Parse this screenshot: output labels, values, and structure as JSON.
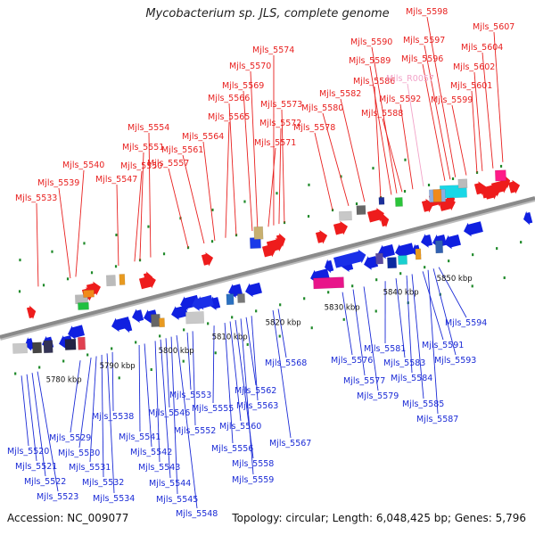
{
  "title": "Mycobacterium sp. JLS, complete genome",
  "footer": {
    "accession": "Accession: NC_009077",
    "summary": "Topology: circular; Length: 6,048,425 bp; Genes: 5,796"
  },
  "colors": {
    "forward_label": "#e8201f",
    "reverse_label": "#1a2ad6",
    "rna_label": "#f2a3c8",
    "backbone": "#8a8a8a",
    "tick": "#1f8a2a"
  },
  "kbp_marks": [
    "5780 kbp",
    "5790 kbp",
    "5800 kbp",
    "5810 kbp",
    "5820 kbp",
    "5830 kbp",
    "5840 kbp",
    "5850 kbp"
  ],
  "top_labels": [
    {
      "text": "Mjls_5598",
      "type": "cds"
    },
    {
      "text": "Mjls_5607",
      "type": "cds"
    },
    {
      "text": "Mjls_5590",
      "type": "cds"
    },
    {
      "text": "Mjls_5597",
      "type": "cds"
    },
    {
      "text": "Mjls_5604",
      "type": "cds"
    },
    {
      "text": "Mjls_5574",
      "type": "cds"
    },
    {
      "text": "Mjls_5589",
      "type": "cds"
    },
    {
      "text": "Mjls_5596",
      "type": "cds"
    },
    {
      "text": "Mjls_5570",
      "type": "cds"
    },
    {
      "text": "Mjls_5602",
      "type": "cds"
    },
    {
      "text": "Mjls_5586",
      "type": "cds"
    },
    {
      "text": "Mjls_R0057",
      "type": "rna"
    },
    {
      "text": "Mjls_5569",
      "type": "cds"
    },
    {
      "text": "Mjls_5601",
      "type": "cds"
    },
    {
      "text": "Mjls_5582",
      "type": "cds"
    },
    {
      "text": "Mjls_5566",
      "type": "cds"
    },
    {
      "text": "Mjls_5573",
      "type": "cds"
    },
    {
      "text": "Mjls_5592",
      "type": "cds"
    },
    {
      "text": "Mjls_5599",
      "type": "cds"
    },
    {
      "text": "Mjls_5580",
      "type": "cds"
    },
    {
      "text": "Mjls_5588",
      "type": "cds"
    },
    {
      "text": "Mjls_5565",
      "type": "cds"
    },
    {
      "text": "Mjls_5572",
      "type": "cds"
    },
    {
      "text": "Mjls_5554",
      "type": "cds"
    },
    {
      "text": "Mjls_5578",
      "type": "cds"
    },
    {
      "text": "Mjls_5564",
      "type": "cds"
    },
    {
      "text": "Mjls_5571",
      "type": "cds"
    },
    {
      "text": "Mjls_5551",
      "type": "cds"
    },
    {
      "text": "Mjls_5561",
      "type": "cds"
    },
    {
      "text": "Mjls_5540",
      "type": "cds"
    },
    {
      "text": "Mjls_5550",
      "type": "cds"
    },
    {
      "text": "Mjls_5557",
      "type": "cds"
    },
    {
      "text": "Mjls_5539",
      "type": "cds"
    },
    {
      "text": "Mjls_5547",
      "type": "cds"
    },
    {
      "text": "Mjls_5533",
      "type": "cds"
    }
  ],
  "bottom_labels": [
    {
      "text": "Mjls_5594"
    },
    {
      "text": "Mjls_5581"
    },
    {
      "text": "Mjls_5591"
    },
    {
      "text": "Mjls_5568"
    },
    {
      "text": "Mjls_5576"
    },
    {
      "text": "Mjls_5583"
    },
    {
      "text": "Mjls_5593"
    },
    {
      "text": "Mjls_5577"
    },
    {
      "text": "Mjls_5584"
    },
    {
      "text": "Mjls_5562"
    },
    {
      "text": "Mjls_5579"
    },
    {
      "text": "Mjls_5553"
    },
    {
      "text": "Mjls_5563"
    },
    {
      "text": "Mjls_5585"
    },
    {
      "text": "Mjls_5538"
    },
    {
      "text": "Mjls_5546"
    },
    {
      "text": "Mjls_5555"
    },
    {
      "text": "Mjls_5587"
    },
    {
      "text": "Mjls_5560"
    },
    {
      "text": "Mjls_5552"
    },
    {
      "text": "Mjls_5529"
    },
    {
      "text": "Mjls_5541"
    },
    {
      "text": "Mjls_5567"
    },
    {
      "text": "Mjls_5520"
    },
    {
      "text": "Mjls_5530"
    },
    {
      "text": "Mjls_5542"
    },
    {
      "text": "Mjls_5556"
    },
    {
      "text": "Mjls_5521"
    },
    {
      "text": "Mjls_5531"
    },
    {
      "text": "Mjls_5543"
    },
    {
      "text": "Mjls_5558"
    },
    {
      "text": "Mjls_5522"
    },
    {
      "text": "Mjls_5532"
    },
    {
      "text": "Mjls_5544"
    },
    {
      "text": "Mjls_5559"
    },
    {
      "text": "Mjls_5523"
    },
    {
      "text": "Mjls_5534"
    },
    {
      "text": "Mjls_5545"
    },
    {
      "text": "Mjls_5548"
    }
  ]
}
